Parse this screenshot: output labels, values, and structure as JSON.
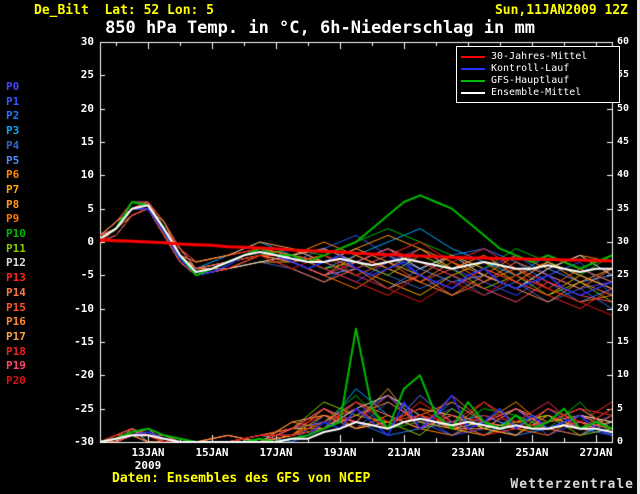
{
  "header": {
    "station": "De_Bilt  Lat: 52 Lon: 5",
    "run": "Sun,11JAN2009 12Z"
  },
  "title": "850 hPa Temp. in °C, 6h-Niederschlag in mm",
  "footer": {
    "source": "Daten: Ensembles des GFS von NCEP",
    "brand": "Wetterzentrale"
  },
  "colors": {
    "background": "#000000",
    "frame": "#ffffff",
    "header_text": "#ffff00",
    "climate_mean": "#ff0000",
    "control_run": "#2233ff",
    "main_run": "#00bb00",
    "ensemble_mean": "#ffffff"
  },
  "chart_data": {
    "type": "line",
    "title": "850 hPa Temp. in °C, 6h-Niederschlag in mm",
    "legend_position": "top-right",
    "grid": false,
    "x_axis": {
      "range": [
        11.5,
        27.5
      ],
      "minor_step_days": 1,
      "ticks": [
        {
          "x": 13,
          "label": "13JAN",
          "sub": "2009"
        },
        {
          "x": 15,
          "label": "15JAN"
        },
        {
          "x": 17,
          "label": "17JAN"
        },
        {
          "x": 19,
          "label": "19JAN"
        },
        {
          "x": 21,
          "label": "21JAN"
        },
        {
          "x": 23,
          "label": "23JAN"
        },
        {
          "x": 25,
          "label": "25JAN"
        },
        {
          "x": 27,
          "label": "27JAN"
        }
      ]
    },
    "y_left": {
      "range": [
        -30,
        30
      ],
      "step": 5,
      "unit": "°C"
    },
    "y_right": {
      "range": [
        0,
        60
      ],
      "step": 5,
      "unit": "mm"
    },
    "x_main": [
      11.5,
      12,
      12.5,
      13,
      13.5,
      14,
      14.5,
      15,
      15.5,
      16,
      16.5,
      17,
      17.5,
      18,
      18.5,
      19,
      19.5,
      20,
      20.5,
      21,
      21.5,
      22,
      22.5,
      23,
      23.5,
      24,
      24.5,
      25,
      25.5,
      26,
      26.5,
      27,
      27.5
    ],
    "key_series": [
      {
        "name": "30-Jahres-Mittel",
        "color": "#ff0000",
        "width": 3,
        "temp": [
          0.3,
          0.2,
          0.1,
          0,
          -0.1,
          -0.3,
          -0.4,
          -0.5,
          -0.7,
          -0.8,
          -0.9,
          -1,
          -1.2,
          -1.3,
          -1.4,
          -1.5,
          -1.7,
          -1.8,
          -1.9,
          -2,
          -2.1,
          -2.2,
          -2.3,
          -2.4,
          -2.4,
          -2.5,
          -2.5,
          -2.6,
          -2.6,
          -2.7,
          -2.7,
          -2.8,
          -2.8
        ]
      },
      {
        "name": "Kontroll-Lauf",
        "color": "#2233ff",
        "width": 1.5,
        "temp": [
          0.5,
          2,
          5,
          5,
          1.5,
          -2.5,
          -5,
          -4.5,
          -3.5,
          -2,
          -1,
          -2,
          -3,
          -4,
          -3,
          -2,
          -4,
          -5,
          -4,
          -3,
          -5,
          -6,
          -7,
          -5,
          -4,
          -6,
          -7,
          -6,
          -5,
          -7,
          -8,
          -7,
          -6
        ],
        "precip": [
          0,
          0.5,
          1,
          1.5,
          0.5,
          0,
          0,
          0,
          0,
          0,
          0,
          0,
          0.5,
          1,
          3,
          2,
          5,
          3,
          1,
          6,
          2,
          4,
          7,
          2,
          3,
          5,
          2,
          4,
          2,
          3,
          4,
          2,
          1
        ]
      },
      {
        "name": "GFS-Hauptlauf",
        "color": "#00bb00",
        "width": 2,
        "temp": [
          0.5,
          2,
          6,
          5.5,
          2,
          -2,
          -5,
          -4,
          -3,
          -2,
          -1,
          -2,
          -2,
          -3,
          -2,
          -1,
          0,
          2,
          4,
          6,
          7,
          6,
          5,
          3,
          1,
          -1,
          -2,
          -3,
          -2,
          -3,
          -4,
          -3,
          -2
        ],
        "precip": [
          0,
          0.5,
          1.5,
          2,
          1,
          0.5,
          0,
          0,
          0,
          0,
          0.5,
          0,
          0.5,
          1,
          2,
          3,
          17,
          5,
          2,
          8,
          10,
          4,
          2,
          6,
          3,
          2,
          4,
          2,
          3,
          5,
          2,
          3,
          2
        ]
      },
      {
        "name": "Ensemble-Mittel",
        "color": "#ffffff",
        "width": 2,
        "temp": [
          0.5,
          2,
          5,
          5.5,
          2,
          -2,
          -4.5,
          -4,
          -3,
          -2,
          -1.5,
          -2,
          -2.5,
          -3,
          -3,
          -2.5,
          -3,
          -3.5,
          -3,
          -2.5,
          -3,
          -3.5,
          -4,
          -3.5,
          -3,
          -3.5,
          -4,
          -4,
          -3.5,
          -4,
          -4.5,
          -4,
          -4
        ],
        "precip": [
          0,
          0.5,
          1,
          1,
          0.5,
          0,
          0,
          0,
          0,
          0,
          0,
          0,
          0.5,
          0.5,
          1.5,
          2,
          3,
          2.5,
          2,
          3,
          3.5,
          3,
          2.5,
          3,
          2.5,
          2,
          2.5,
          2,
          2,
          2.5,
          2,
          2,
          1.5
        ]
      }
    ],
    "x_members": [
      11.5,
      12,
      12.5,
      13,
      13.5,
      14,
      14.5,
      15.5,
      16.5,
      17.5,
      18.5,
      19.5,
      20.5,
      21.5,
      22.5,
      23.5,
      24.5,
      25.5,
      26.5,
      27.5
    ],
    "members": [
      {
        "name": "P0",
        "color": "#4444ff",
        "temp": [
          0,
          2,
          5,
          5,
          2,
          -2,
          -5,
          -3,
          -1,
          -2,
          -4,
          -6,
          -3,
          -1,
          -4,
          -6,
          -8,
          -5,
          -7,
          -6
        ],
        "precip": [
          0,
          1,
          2,
          1,
          0,
          0,
          0,
          0,
          0,
          1,
          3,
          6,
          2,
          4,
          1,
          2,
          5,
          1,
          3,
          2
        ]
      },
      {
        "name": "P1",
        "color": "#3355ff",
        "temp": [
          1,
          3,
          5,
          6,
          2,
          -1,
          -4,
          -3,
          -2,
          -3,
          -1,
          1,
          -2,
          -5,
          -7,
          -4,
          -2,
          -5,
          -3,
          -8
        ],
        "precip": [
          0,
          0,
          1,
          2,
          1,
          0,
          0,
          0,
          1,
          0,
          2,
          4,
          7,
          3,
          1,
          4,
          2,
          5,
          2,
          1
        ]
      },
      {
        "name": "P2",
        "color": "#2277ff",
        "temp": [
          0,
          2,
          4,
          5,
          1,
          -2,
          -5,
          -4,
          -2,
          -1,
          -3,
          -5,
          -7,
          -4,
          -2,
          -1,
          -3,
          -6,
          -9,
          -7
        ],
        "precip": [
          0,
          1,
          1,
          0,
          0,
          0,
          0,
          0,
          0,
          2,
          5,
          3,
          1,
          2,
          6,
          3,
          1,
          2,
          4,
          2
        ]
      },
      {
        "name": "P3",
        "color": "#00aaff",
        "temp": [
          1,
          2,
          5,
          6,
          3,
          -1,
          -4,
          -2,
          0,
          -2,
          -4,
          -2,
          0,
          2,
          -1,
          -3,
          -5,
          -2,
          -4,
          -6
        ],
        "precip": [
          0,
          0,
          2,
          1,
          1,
          0,
          0,
          0,
          0,
          1,
          2,
          8,
          4,
          2,
          3,
          1,
          4,
          2,
          1,
          3
        ]
      },
      {
        "name": "P4",
        "color": "#3366cc",
        "temp": [
          0,
          1,
          4,
          5,
          2,
          -3,
          -5,
          -4,
          -3,
          -4,
          -6,
          -3,
          -5,
          -7,
          -5,
          -8,
          -6,
          -9,
          -7,
          -10
        ],
        "precip": [
          0,
          1,
          1,
          2,
          0,
          0,
          0,
          0,
          1,
          0,
          4,
          2,
          6,
          3,
          5,
          2,
          3,
          6,
          2,
          4
        ]
      },
      {
        "name": "P5",
        "color": "#5588ff",
        "temp": [
          1,
          3,
          6,
          6,
          2,
          -2,
          -4,
          -3,
          -1,
          -3,
          -5,
          -4,
          -2,
          -4,
          -6,
          -5,
          -7,
          -4,
          -6,
          -5
        ],
        "precip": [
          0,
          0,
          1,
          1,
          0,
          0,
          0,
          1,
          0,
          2,
          3,
          5,
          2,
          7,
          3,
          4,
          2,
          3,
          5,
          2
        ]
      },
      {
        "name": "P6",
        "color": "#ff8800",
        "temp": [
          0,
          2,
          5,
          5,
          1,
          -3,
          -5,
          -3,
          -2,
          -2,
          0,
          -2,
          -4,
          -1,
          -3,
          -5,
          -2,
          -4,
          -2,
          -3
        ],
        "precip": [
          0,
          1,
          2,
          1,
          1,
          0,
          0,
          0,
          0,
          1,
          5,
          2,
          4,
          2,
          1,
          3,
          6,
          2,
          3,
          1
        ]
      },
      {
        "name": "P7",
        "color": "#ffaa00",
        "temp": [
          1,
          2,
          4,
          5,
          2,
          -2,
          -4,
          -4,
          -3,
          -3,
          -2,
          -4,
          -6,
          -8,
          -5,
          -3,
          -6,
          -8,
          -5,
          -7
        ],
        "precip": [
          0,
          0,
          1,
          0,
          0,
          0,
          0,
          0,
          1,
          2,
          2,
          6,
          3,
          5,
          2,
          1,
          3,
          4,
          2,
          5
        ]
      },
      {
        "name": "P8",
        "color": "#ff9922",
        "temp": [
          0,
          2,
          5,
          6,
          3,
          -1,
          -3,
          -2,
          -1,
          -2,
          -3,
          -1,
          1,
          -1,
          -4,
          -2,
          -5,
          -3,
          -6,
          -4
        ],
        "precip": [
          0,
          1,
          1,
          1,
          0,
          0,
          0,
          0,
          0,
          1,
          4,
          3,
          8,
          2,
          4,
          2,
          1,
          5,
          3,
          2
        ]
      },
      {
        "name": "P9",
        "color": "#ff7700",
        "temp": [
          1,
          3,
          5,
          5,
          1,
          -2,
          -5,
          -4,
          -2,
          -3,
          -5,
          -7,
          -4,
          -6,
          -3,
          -6,
          -4,
          -7,
          -9,
          -8
        ],
        "precip": [
          0,
          0,
          2,
          1,
          0,
          0,
          0,
          1,
          0,
          3,
          2,
          5,
          2,
          4,
          6,
          3,
          2,
          1,
          4,
          3
        ]
      },
      {
        "name": "P10",
        "color": "#00bb00",
        "temp": [
          0,
          2,
          4,
          5,
          2,
          -2,
          -4,
          -3,
          -2,
          -1,
          -2,
          0,
          2,
          0,
          -2,
          -4,
          -1,
          -3,
          -5,
          -2
        ],
        "precip": [
          0,
          1,
          1,
          2,
          1,
          0,
          0,
          0,
          1,
          1,
          3,
          7,
          2,
          3,
          2,
          5,
          4,
          2,
          6,
          1
        ]
      },
      {
        "name": "P11",
        "color": "#88cc00",
        "temp": [
          1,
          2,
          5,
          6,
          2,
          -1,
          -4,
          -3,
          -1,
          -2,
          -4,
          -3,
          -5,
          -2,
          -4,
          -7,
          -5,
          -8,
          -6,
          -9
        ],
        "precip": [
          0,
          0,
          1,
          1,
          0,
          0,
          0,
          0,
          0,
          2,
          6,
          4,
          3,
          1,
          5,
          2,
          3,
          4,
          1,
          2
        ]
      },
      {
        "name": "P12",
        "color": "#dddddd",
        "temp": [
          0,
          1,
          4,
          5,
          1,
          -3,
          -5,
          -4,
          -3,
          -2,
          -1,
          -3,
          -1,
          -4,
          -2,
          -5,
          -7,
          -4,
          -2,
          -5
        ],
        "precip": [
          0,
          1,
          2,
          0,
          0,
          0,
          0,
          0,
          1,
          1,
          2,
          5,
          7,
          4,
          2,
          3,
          5,
          2,
          4,
          3
        ]
      },
      {
        "name": "P13",
        "color": "#ff2222",
        "temp": [
          1,
          3,
          6,
          6,
          3,
          -1,
          -3,
          -2,
          -1,
          -3,
          -2,
          -4,
          -2,
          0,
          -3,
          -1,
          -4,
          -6,
          -8,
          -6
        ],
        "precip": [
          0,
          0,
          1,
          1,
          0,
          0,
          0,
          1,
          0,
          2,
          4,
          3,
          2,
          6,
          3,
          1,
          2,
          5,
          3,
          6
        ]
      },
      {
        "name": "P14",
        "color": "#ff7744",
        "temp": [
          0,
          2,
          5,
          5,
          2,
          -2,
          -4,
          -3,
          -2,
          -4,
          -6,
          -4,
          -7,
          -5,
          -8,
          -6,
          -3,
          -5,
          -7,
          -4
        ],
        "precip": [
          0,
          1,
          1,
          2,
          0,
          0,
          0,
          0,
          0,
          1,
          3,
          6,
          4,
          2,
          7,
          3,
          2,
          3,
          5,
          2
        ]
      },
      {
        "name": "P15",
        "color": "#ff5522",
        "temp": [
          1,
          2,
          4,
          5,
          1,
          -2,
          -5,
          -3,
          -1,
          -2,
          -3,
          -5,
          -3,
          -6,
          -4,
          -2,
          -5,
          -7,
          -4,
          -6
        ],
        "precip": [
          0,
          0,
          2,
          1,
          1,
          0,
          0,
          0,
          1,
          2,
          5,
          2,
          3,
          4,
          2,
          6,
          3,
          2,
          1,
          4
        ]
      },
      {
        "name": "P16",
        "color": "#ff8833",
        "temp": [
          0,
          2,
          5,
          6,
          2,
          -1,
          -4,
          -4,
          -2,
          -3,
          -5,
          -2,
          -4,
          -6,
          -8,
          -5,
          -7,
          -9,
          -6,
          -8
        ],
        "precip": [
          0,
          1,
          1,
          0,
          0,
          0,
          0,
          0,
          0,
          1,
          2,
          4,
          6,
          3,
          2,
          2,
          5,
          3,
          4,
          2
        ]
      },
      {
        "name": "P17",
        "color": "#ffa044",
        "temp": [
          1,
          3,
          5,
          5,
          3,
          -2,
          -3,
          -2,
          0,
          -1,
          -3,
          -1,
          -3,
          -5,
          -2,
          -4,
          -6,
          -3,
          -5,
          -7
        ],
        "precip": [
          0,
          0,
          1,
          1,
          0,
          0,
          0,
          1,
          0,
          3,
          4,
          2,
          3,
          5,
          4,
          2,
          1,
          4,
          2,
          3
        ]
      },
      {
        "name": "P18",
        "color": "#ee2222",
        "temp": [
          0,
          1,
          4,
          5,
          1,
          -3,
          -5,
          -4,
          -2,
          -2,
          -4,
          -6,
          -8,
          -5,
          -7,
          -4,
          -6,
          -8,
          -10,
          -7
        ],
        "precip": [
          0,
          1,
          2,
          1,
          0,
          0,
          0,
          0,
          1,
          1,
          3,
          5,
          2,
          4,
          3,
          6,
          2,
          3,
          5,
          4
        ]
      },
      {
        "name": "P19",
        "color": "#ff4466",
        "temp": [
          1,
          2,
          5,
          6,
          2,
          -1,
          -4,
          -3,
          -1,
          -3,
          -5,
          -3,
          -1,
          -3,
          -5,
          -7,
          -9,
          -6,
          -8,
          -9
        ],
        "precip": [
          0,
          0,
          1,
          2,
          1,
          0,
          0,
          0,
          0,
          2,
          5,
          3,
          7,
          2,
          4,
          3,
          5,
          2,
          3,
          2
        ]
      },
      {
        "name": "P20",
        "color": "#dd1111",
        "temp": [
          0,
          2,
          5,
          5,
          2,
          -2,
          -5,
          -3,
          -2,
          -4,
          -2,
          -5,
          -7,
          -9,
          -6,
          -8,
          -5,
          -7,
          -9,
          -11
        ],
        "precip": [
          0,
          1,
          1,
          1,
          0,
          0,
          0,
          0,
          1,
          1,
          2,
          6,
          3,
          5,
          2,
          4,
          3,
          6,
          2,
          5
        ]
      }
    ]
  }
}
